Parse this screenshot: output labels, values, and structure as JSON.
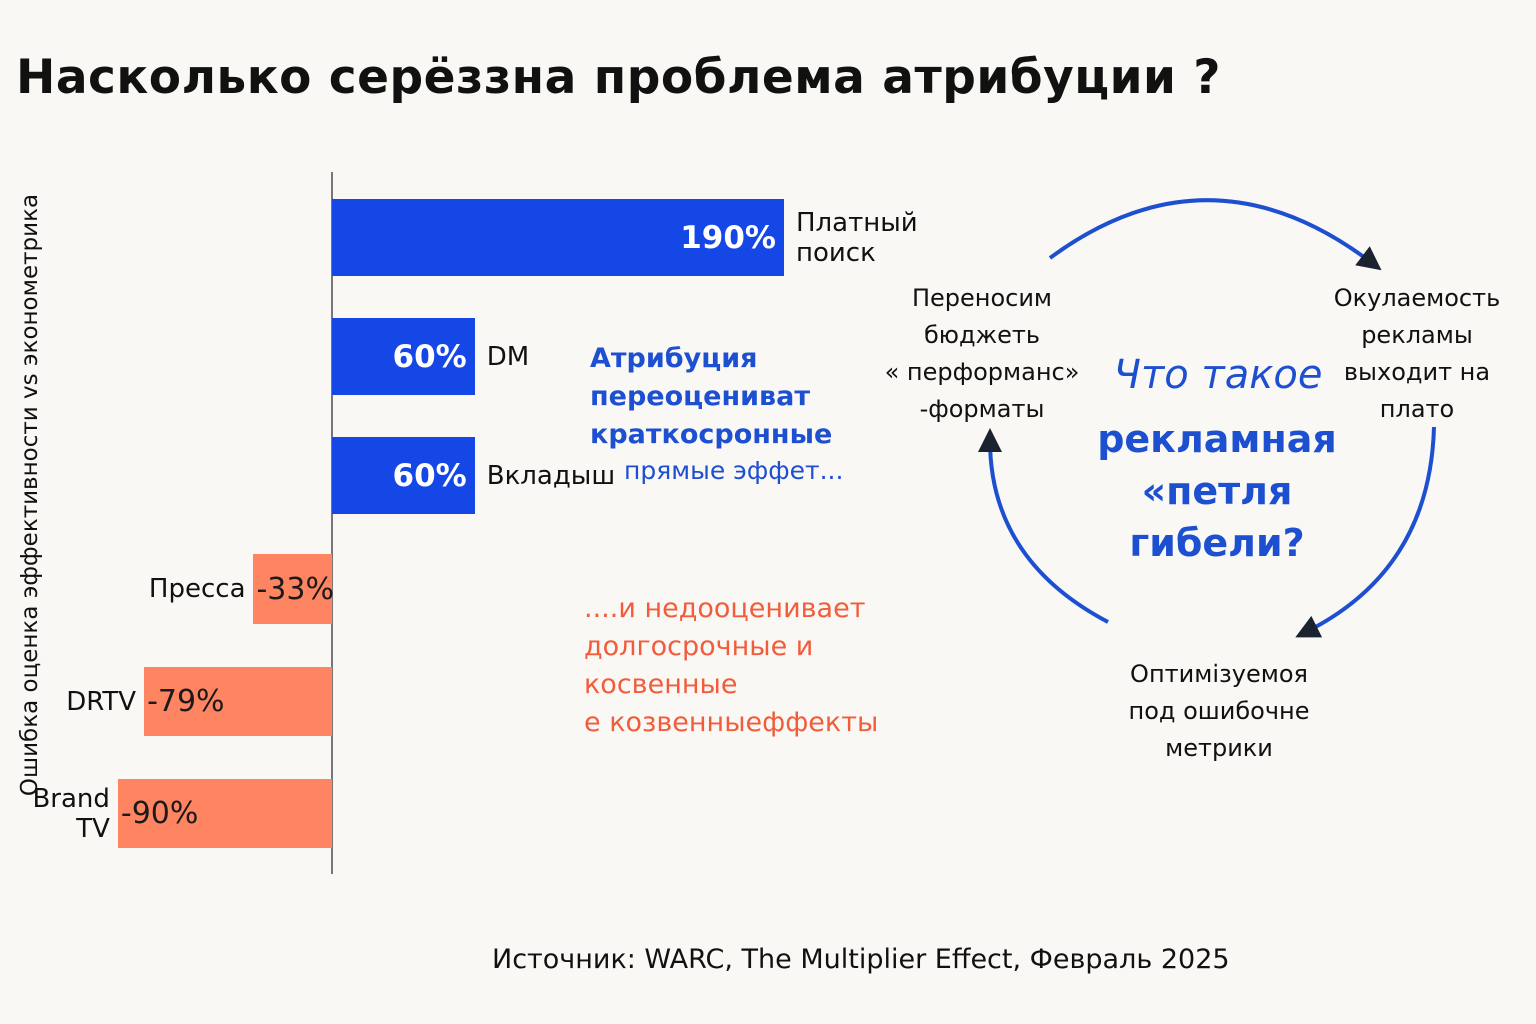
{
  "title": "Насколько серёззна проблема атрибуции ?",
  "colors": {
    "positive": "#1447e6",
    "negative": "#ff8562",
    "over_text": "#1d4fd1",
    "under_text": "#f25c3b",
    "loop_arrow": "#1d4fd1"
  },
  "chart_data": {
    "type": "bar",
    "orientation": "horizontal",
    "ylabel": "Ошибка оценка эффективности vs эконометрика",
    "categories": [
      "Платный поиск",
      "DM",
      "Вкладыш",
      "Пресса",
      "DRTV",
      "Brand TV"
    ],
    "values": [
      190,
      60,
      60,
      -33,
      -79,
      -90
    ],
    "value_labels": [
      "190%",
      "60%",
      "60%",
      "-33%",
      "-79%",
      "-90%"
    ],
    "category_labels": [
      "Платный\nпоиск",
      "DM",
      "Вкладыш",
      "Пресса",
      "DRTV",
      "Brand\nTV"
    ],
    "xlim": [
      -150,
      220
    ],
    "grid": false,
    "legend": "none"
  },
  "annotations": {
    "overestimate": "Атрибуция\nпереоцениват\nкраткосронные",
    "overestimate_tail": "прямые эффет...",
    "underestimate": "....и недооценивает\nдолгосрочные и\nкосвенные\nе козвенныеффекты"
  },
  "loop": {
    "question_line1": "Что такое",
    "question_line2": "рекламная\n«петля гибели?",
    "nodes": [
      {
        "name": "loop-node-plateau",
        "text": "Окулаемость\nрекламы\nвыходит на\nплато"
      },
      {
        "name": "loop-node-optimize",
        "text": "Оптимізуемоя\nпод ошибочне\nметрики"
      },
      {
        "name": "loop-node-budget",
        "text": "Переносим\nбюджеть\n« перформанс»\n-форматы"
      }
    ]
  },
  "source": "Источник: WARC, The Multiplier Effect, Февраль 2025"
}
